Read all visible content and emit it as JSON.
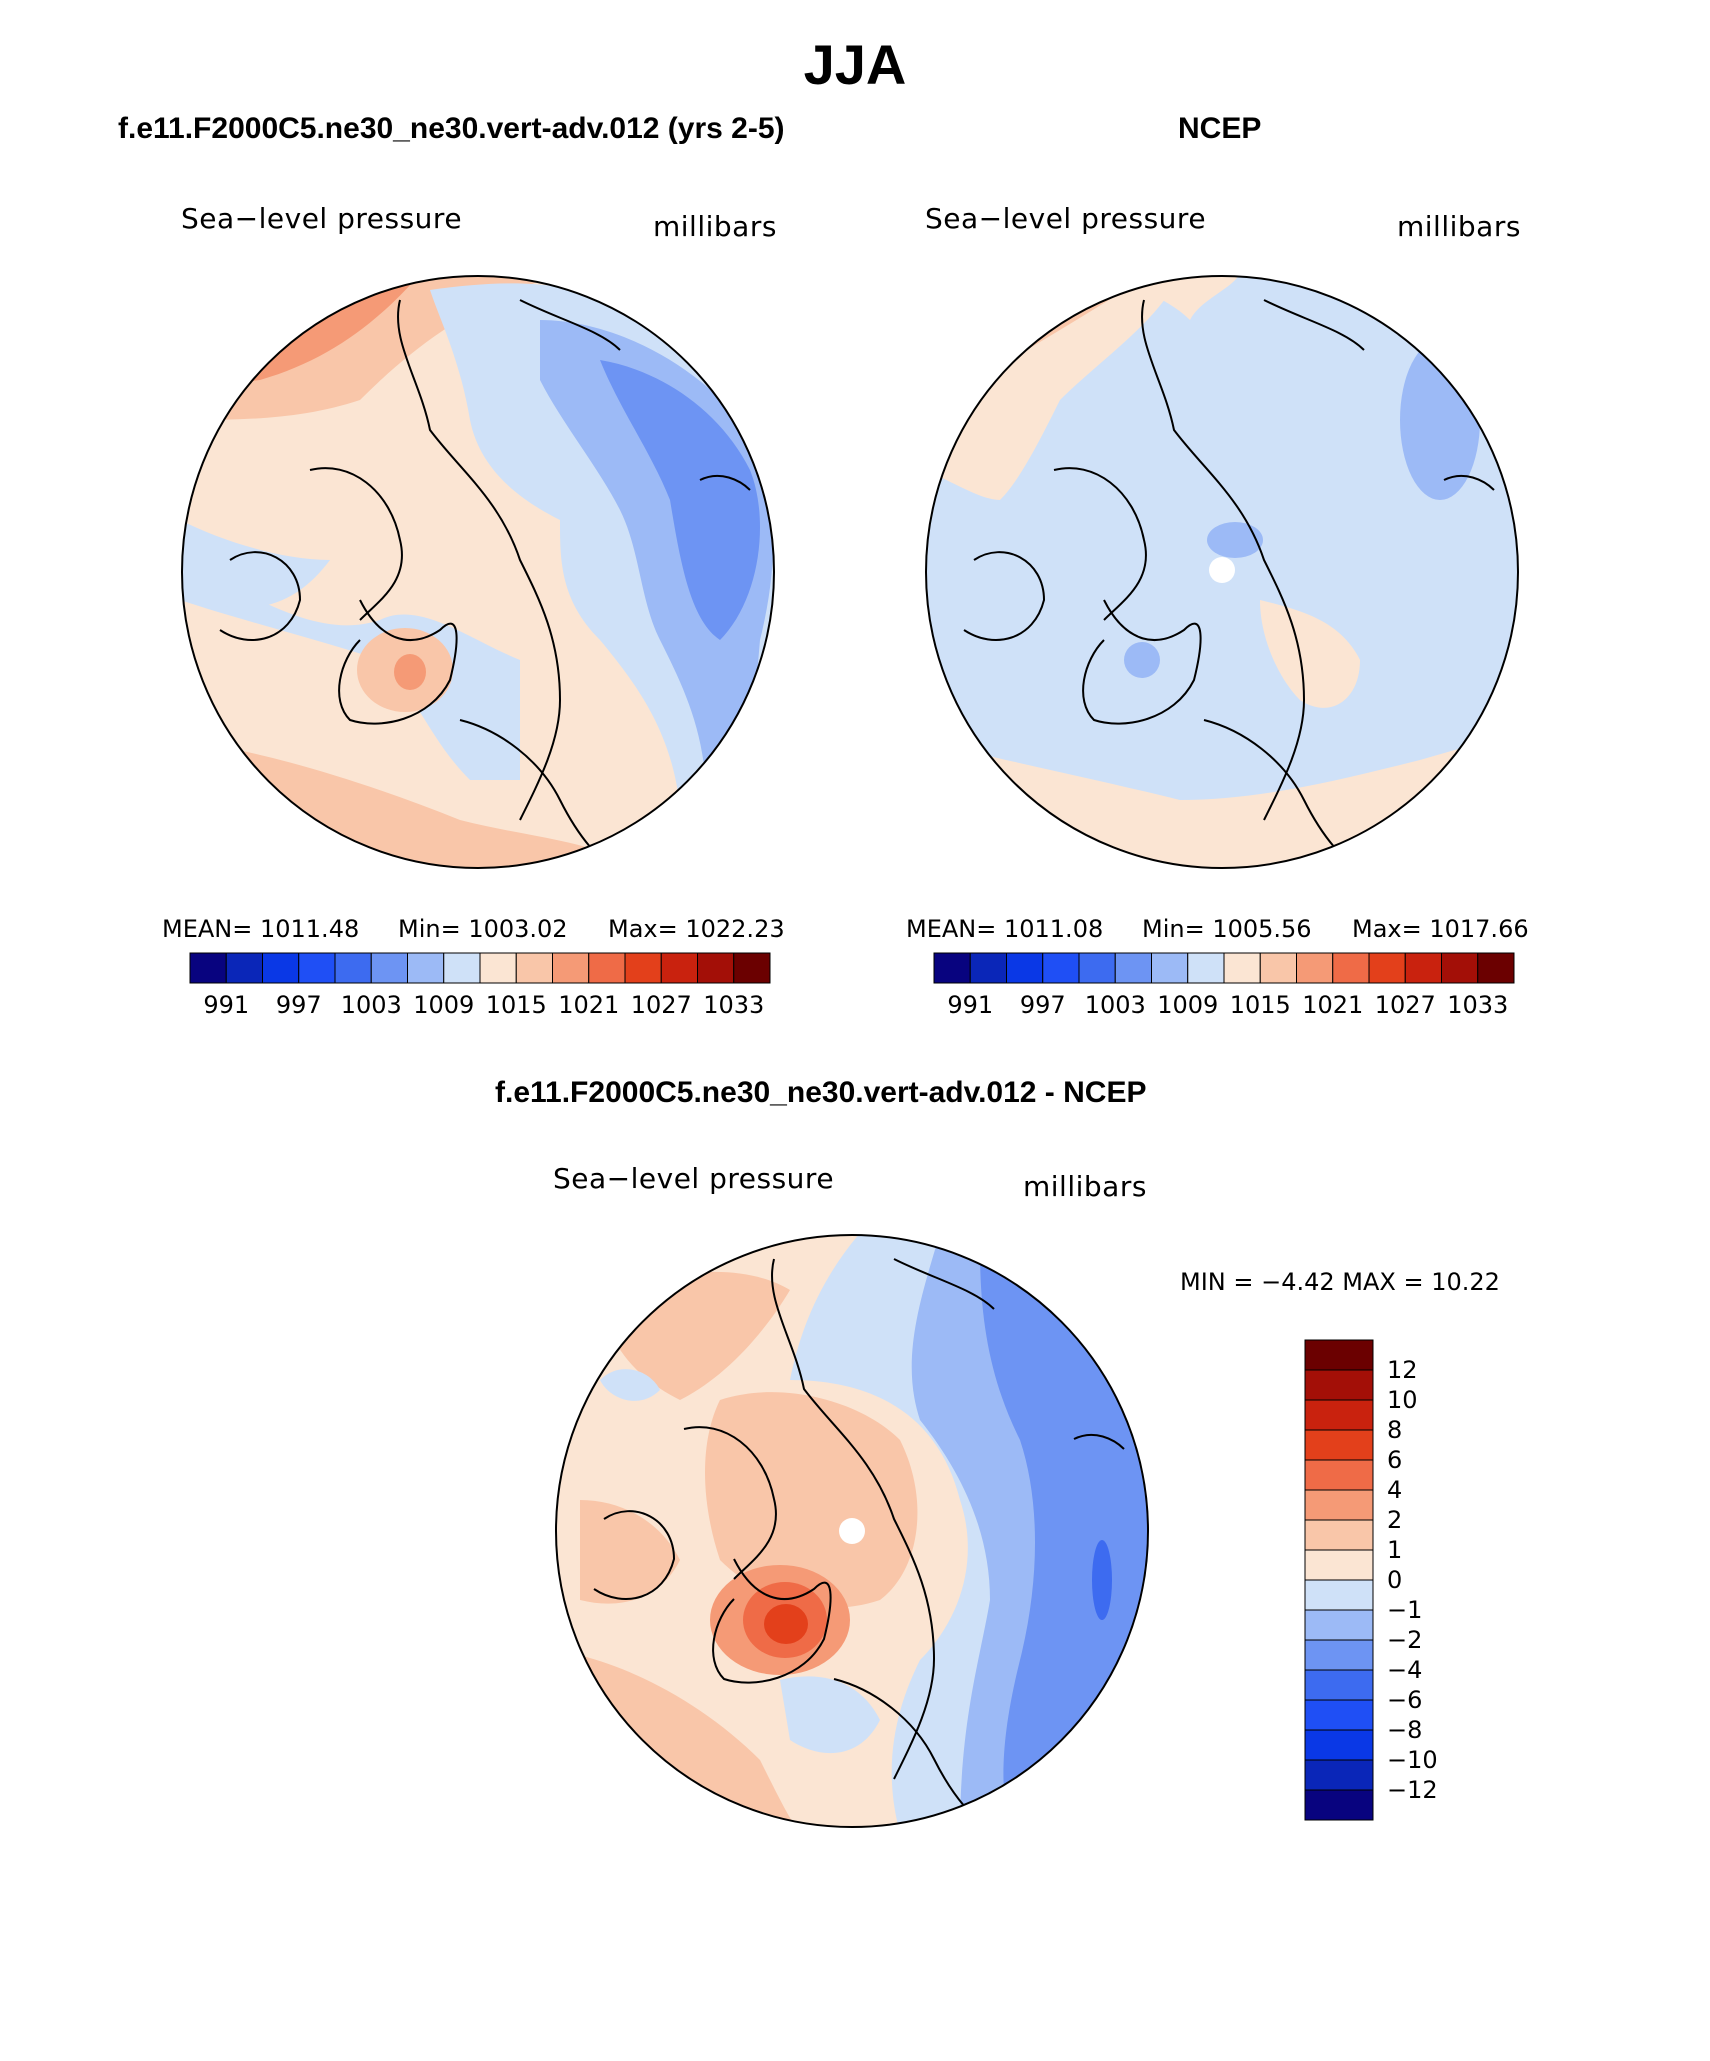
{
  "figure": {
    "title": "JJA",
    "units": "millibars",
    "variable": "Sea−level pressure"
  },
  "panels": {
    "model": {
      "title": "f.e11.F2000C5.ne30_ne30.vert-adv.012 (yrs 2-5)",
      "field_label": "Sea−level pressure",
      "units_label": "millibars",
      "mean_text": "MEAN=  1011.48",
      "min_text": "Min=  1003.02",
      "max_text": "Max=  1022.23"
    },
    "obs": {
      "title": "NCEP",
      "field_label": "Sea−level pressure",
      "units_label": "millibars",
      "mean_text": "MEAN=  1011.08",
      "min_text": "Min=  1005.56",
      "max_text": "Max=  1017.66"
    },
    "diff": {
      "title": "f.e11.F2000C5.ne30_ne30.vert-adv.012 - NCEP",
      "field_label": "Sea−level pressure",
      "units_label": "millibars",
      "minmax_text": "MIN =   −4.42  MAX =    10.22"
    }
  },
  "chart_data": [
    {
      "type": "heatmap",
      "projection": "north polar stereographic",
      "title": "f.e11.F2000C5.ne30_ne30.vert-adv.012 (yrs 2-5)",
      "label": "Sea−level pressure",
      "units": "millibars",
      "mean": 1011.48,
      "min": 1003.02,
      "max": 1022.23,
      "colorbar_levels": [
        991,
        994,
        997,
        1000,
        1003,
        1006,
        1009,
        1012,
        1015,
        1018,
        1021,
        1024,
        1027,
        1030,
        1033
      ],
      "colorbar_labels": [
        "991",
        "997",
        "1003",
        "1009",
        "1015",
        "1021",
        "1027",
        "1033"
      ],
      "colorbar_colors": [
        "#08037f",
        "#0a26b8",
        "#0a38e6",
        "#1f4ff5",
        "#3d6bf0",
        "#6d94f3",
        "#9cbaf6",
        "#cfe1f8",
        "#fbe5d3",
        "#f9c6a9",
        "#f59a76",
        "#ef6b47",
        "#e3401b",
        "#c9220e",
        "#a30f07",
        "#6b0000"
      ]
    },
    {
      "type": "heatmap",
      "projection": "north polar stereographic",
      "title": "NCEP",
      "label": "Sea−level pressure",
      "units": "millibars",
      "mean": 1011.08,
      "min": 1005.56,
      "max": 1017.66,
      "colorbar_levels": [
        991,
        994,
        997,
        1000,
        1003,
        1006,
        1009,
        1012,
        1015,
        1018,
        1021,
        1024,
        1027,
        1030,
        1033
      ],
      "colorbar_labels": [
        "991",
        "997",
        "1003",
        "1009",
        "1015",
        "1021",
        "1027",
        "1033"
      ],
      "colorbar_colors": [
        "#08037f",
        "#0a26b8",
        "#0a38e6",
        "#1f4ff5",
        "#3d6bf0",
        "#6d94f3",
        "#9cbaf6",
        "#cfe1f8",
        "#fbe5d3",
        "#f9c6a9",
        "#f59a76",
        "#ef6b47",
        "#e3401b",
        "#c9220e",
        "#a30f07",
        "#6b0000"
      ]
    },
    {
      "type": "heatmap",
      "projection": "north polar stereographic",
      "title": "f.e11.F2000C5.ne30_ne30.vert-adv.012 - NCEP",
      "label": "Sea−level pressure",
      "units": "millibars",
      "min": -4.42,
      "max": 10.22,
      "colorbar_labels_top_to_bottom": [
        "12",
        "10",
        "8",
        "6",
        "4",
        "2",
        "1",
        "0",
        "−1",
        "−2",
        "−4",
        "−6",
        "−8",
        "−10",
        "−12"
      ],
      "colorbar_colors_top_to_bottom": [
        "#6b0000",
        "#a30f07",
        "#c9220e",
        "#e3401b",
        "#ef6b47",
        "#f59a76",
        "#f9c6a9",
        "#fbe5d3",
        "#cfe1f8",
        "#9cbaf6",
        "#6d94f3",
        "#3d6bf0",
        "#1f4ff5",
        "#0a38e6",
        "#0a26b8",
        "#08037f"
      ]
    }
  ]
}
